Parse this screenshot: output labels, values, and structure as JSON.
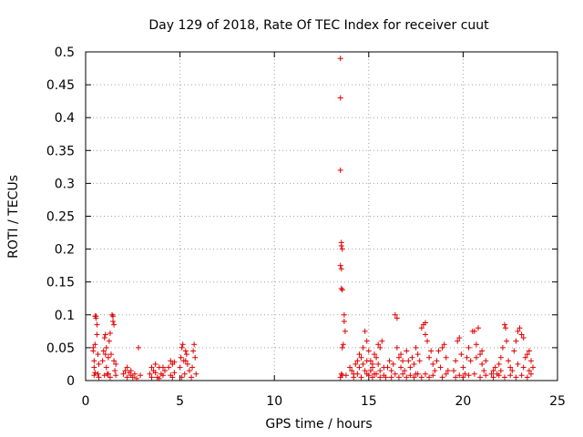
{
  "chart_data": {
    "type": "scatter",
    "title": "Day 129 of 2018, Rate Of TEC Index for receiver cuut",
    "xlabel": "GPS time / hours",
    "ylabel": "ROTI / TECUs",
    "xlim": [
      0,
      25
    ],
    "ylim": [
      0,
      0.5
    ],
    "xticks": [
      "0",
      "5",
      "10",
      "15",
      "20",
      "25"
    ],
    "yticks": [
      "0",
      "0.05",
      "0.1",
      "0.15",
      "0.2",
      "0.25",
      "0.3",
      "0.35",
      "0.4",
      "0.45",
      "0.5"
    ],
    "grid": true,
    "marker": "plus",
    "marker_color": "#e00000",
    "series": [
      {
        "points": [
          [
            0.4,
            0.05
          ],
          [
            0.4,
            0.045
          ],
          [
            0.45,
            0.03
          ],
          [
            0.45,
            0.02
          ],
          [
            0.5,
            0.012
          ],
          [
            0.5,
            0.055
          ],
          [
            0.55,
            0.098
          ],
          [
            0.55,
            0.095
          ],
          [
            0.6,
            0.085
          ],
          [
            0.6,
            0.07
          ],
          [
            0.65,
            0.04
          ],
          [
            0.65,
            0.01
          ],
          [
            0.7,
            0.005
          ],
          [
            0.7,
            0.025
          ],
          [
            0.5,
            0.098
          ],
          [
            0.45,
            0.008
          ],
          [
            0.9,
            0.03
          ],
          [
            0.95,
            0.045
          ],
          [
            1.0,
            0.065
          ],
          [
            1.05,
            0.07
          ],
          [
            1.1,
            0.05
          ],
          [
            1.1,
            0.02
          ],
          [
            1.15,
            0.01
          ],
          [
            1.2,
            0.035
          ],
          [
            1.25,
            0.06
          ],
          [
            1.3,
            0.072
          ],
          [
            1.35,
            0.04
          ],
          [
            1.4,
            0.1
          ],
          [
            1.45,
            0.098
          ],
          [
            1.45,
            0.09
          ],
          [
            1.5,
            0.085
          ],
          [
            1.5,
            0.03
          ],
          [
            1.55,
            0.015
          ],
          [
            1.6,
            0.008
          ],
          [
            1.0,
            0.008
          ],
          [
            1.2,
            0.01
          ],
          [
            1.3,
            0.005
          ],
          [
            1.6,
            0.025
          ],
          [
            1.05,
            0.04
          ],
          [
            2.0,
            0.01
          ],
          [
            2.1,
            0.015
          ],
          [
            2.2,
            0.02
          ],
          [
            2.3,
            0.012
          ],
          [
            2.4,
            0.008
          ],
          [
            2.5,
            0.005
          ],
          [
            2.6,
            0.01
          ],
          [
            2.7,
            0.003
          ],
          [
            2.8,
            0.05
          ],
          [
            2.9,
            0.008
          ],
          [
            2.2,
            0.005
          ],
          [
            2.4,
            0.015
          ],
          [
            3.4,
            0.01
          ],
          [
            3.5,
            0.02
          ],
          [
            3.6,
            0.015
          ],
          [
            3.7,
            0.025
          ],
          [
            3.8,
            0.005
          ],
          [
            3.9,
            0.02
          ],
          [
            4.0,
            0.01
          ],
          [
            4.1,
            0.008
          ],
          [
            4.2,
            0.015
          ],
          [
            3.5,
            0.005
          ],
          [
            3.7,
            0.012
          ],
          [
            3.9,
            0.003
          ],
          [
            4.1,
            0.02
          ],
          [
            4.4,
            0.02
          ],
          [
            4.5,
            0.03
          ],
          [
            4.6,
            0.025
          ],
          [
            4.7,
            0.012
          ],
          [
            4.5,
            0.008
          ],
          [
            4.6,
            0.005
          ],
          [
            4.7,
            0.028
          ],
          [
            5.0,
            0.02
          ],
          [
            5.05,
            0.035
          ],
          [
            5.1,
            0.05
          ],
          [
            5.15,
            0.055
          ],
          [
            5.2,
            0.03
          ],
          [
            5.25,
            0.01
          ],
          [
            5.3,
            0.045
          ],
          [
            5.35,
            0.04
          ],
          [
            5.4,
            0.025
          ],
          [
            5.5,
            0.015
          ],
          [
            5.6,
            0.005
          ],
          [
            5.65,
            0.02
          ],
          [
            5.7,
            0.045
          ],
          [
            5.75,
            0.055
          ],
          [
            5.8,
            0.035
          ],
          [
            5.85,
            0.01
          ],
          [
            5.1,
            0.005
          ],
          [
            5.3,
            0.03
          ],
          [
            13.5,
            0.49
          ],
          [
            13.5,
            0.43
          ],
          [
            13.5,
            0.32
          ],
          [
            13.55,
            0.21
          ],
          [
            13.55,
            0.205
          ],
          [
            13.6,
            0.2
          ],
          [
            13.5,
            0.175
          ],
          [
            13.55,
            0.17
          ],
          [
            13.55,
            0.14
          ],
          [
            13.6,
            0.138
          ],
          [
            13.7,
            0.1
          ],
          [
            13.7,
            0.09
          ],
          [
            13.75,
            0.075
          ],
          [
            13.65,
            0.055
          ],
          [
            13.6,
            0.05
          ],
          [
            13.55,
            0.01
          ],
          [
            13.6,
            0.008
          ],
          [
            13.5,
            0.005
          ],
          [
            13.8,
            0.008
          ],
          [
            14.0,
            0.02
          ],
          [
            14.1,
            0.015
          ],
          [
            14.2,
            0.01
          ],
          [
            14.3,
            0.025
          ],
          [
            14.4,
            0.03
          ],
          [
            14.5,
            0.04
          ],
          [
            14.6,
            0.035
          ],
          [
            14.7,
            0.05
          ],
          [
            14.8,
            0.075
          ],
          [
            14.9,
            0.06
          ],
          [
            15.0,
            0.045
          ],
          [
            15.1,
            0.03
          ],
          [
            15.2,
            0.02
          ],
          [
            15.3,
            0.01
          ],
          [
            15.4,
            0.035
          ],
          [
            15.5,
            0.025
          ],
          [
            15.6,
            0.015
          ],
          [
            15.7,
            0.06
          ],
          [
            15.8,
            0.02
          ],
          [
            15.9,
            0.005
          ],
          [
            14.2,
            0.005
          ],
          [
            14.4,
            0.01
          ],
          [
            14.6,
            0.005
          ],
          [
            14.8,
            0.015
          ],
          [
            15.0,
            0.008
          ],
          [
            15.2,
            0.005
          ],
          [
            15.4,
            0.01
          ],
          [
            15.6,
            0.005
          ],
          [
            15.8,
            0.008
          ],
          [
            14.5,
            0.02
          ],
          [
            14.7,
            0.025
          ],
          [
            14.9,
            0.01
          ],
          [
            15.1,
            0.015
          ],
          [
            15.3,
            0.04
          ],
          [
            15.5,
            0.055
          ],
          [
            14.9,
            0.03
          ],
          [
            15.2,
            0.025
          ],
          [
            15.6,
            0.05
          ],
          [
            16.0,
            0.02
          ],
          [
            16.1,
            0.03
          ],
          [
            16.2,
            0.015
          ],
          [
            16.3,
            0.025
          ],
          [
            16.4,
            0.1
          ],
          [
            16.5,
            0.095
          ],
          [
            16.6,
            0.035
          ],
          [
            16.7,
            0.02
          ],
          [
            16.8,
            0.03
          ],
          [
            16.9,
            0.015
          ],
          [
            17.0,
            0.045
          ],
          [
            17.1,
            0.03
          ],
          [
            17.2,
            0.02
          ],
          [
            17.3,
            0.035
          ],
          [
            17.4,
            0.025
          ],
          [
            17.5,
            0.01
          ],
          [
            17.6,
            0.04
          ],
          [
            17.7,
            0.03
          ],
          [
            17.8,
            0.08
          ],
          [
            17.9,
            0.085
          ],
          [
            18.0,
            0.07
          ],
          [
            18.1,
            0.06
          ],
          [
            18.2,
            0.035
          ],
          [
            18.3,
            0.045
          ],
          [
            18.4,
            0.025
          ],
          [
            18.5,
            0.015
          ],
          [
            16.2,
            0.005
          ],
          [
            16.4,
            0.01
          ],
          [
            16.6,
            0.005
          ],
          [
            16.8,
            0.01
          ],
          [
            17.0,
            0.005
          ],
          [
            17.2,
            0.008
          ],
          [
            17.4,
            0.005
          ],
          [
            17.6,
            0.01
          ],
          [
            17.8,
            0.005
          ],
          [
            18.0,
            0.01
          ],
          [
            18.2,
            0.005
          ],
          [
            18.4,
            0.008
          ],
          [
            16.5,
            0.05
          ],
          [
            16.7,
            0.04
          ],
          [
            17.5,
            0.05
          ],
          [
            18.0,
            0.088
          ],
          [
            18.6,
            0.03
          ],
          [
            18.7,
            0.045
          ],
          [
            18.8,
            0.02
          ],
          [
            18.9,
            0.05
          ],
          [
            19.0,
            0.055
          ],
          [
            19.1,
            0.035
          ],
          [
            19.2,
            0.015
          ],
          [
            18.9,
            0.005
          ],
          [
            19.1,
            0.01
          ],
          [
            19.5,
            0.015
          ],
          [
            19.6,
            0.03
          ],
          [
            19.7,
            0.06
          ],
          [
            19.8,
            0.065
          ],
          [
            19.9,
            0.04
          ],
          [
            20.0,
            0.02
          ],
          [
            20.1,
            0.01
          ],
          [
            20.2,
            0.035
          ],
          [
            20.3,
            0.05
          ],
          [
            20.4,
            0.03
          ],
          [
            20.5,
            0.075
          ],
          [
            20.6,
            0.075
          ],
          [
            20.7,
            0.055
          ],
          [
            20.8,
            0.08
          ],
          [
            20.9,
            0.04
          ],
          [
            21.0,
            0.025
          ],
          [
            21.1,
            0.015
          ],
          [
            21.2,
            0.03
          ],
          [
            19.6,
            0.005
          ],
          [
            19.8,
            0.008
          ],
          [
            20.0,
            0.005
          ],
          [
            20.3,
            0.008
          ],
          [
            20.6,
            0.01
          ],
          [
            20.9,
            0.005
          ],
          [
            21.2,
            0.008
          ],
          [
            20.7,
            0.035
          ],
          [
            21.0,
            0.045
          ],
          [
            21.5,
            0.01
          ],
          [
            21.6,
            0.015
          ],
          [
            21.7,
            0.02
          ],
          [
            21.8,
            0.01
          ],
          [
            21.9,
            0.025
          ],
          [
            22.0,
            0.015
          ],
          [
            22.1,
            0.05
          ],
          [
            22.2,
            0.085
          ],
          [
            22.25,
            0.08
          ],
          [
            22.3,
            0.06
          ],
          [
            22.4,
            0.03
          ],
          [
            22.5,
            0.02
          ],
          [
            22.6,
            0.015
          ],
          [
            22.7,
            0.045
          ],
          [
            22.8,
            0.06
          ],
          [
            22.9,
            0.075
          ],
          [
            23.0,
            0.08
          ],
          [
            23.1,
            0.07
          ],
          [
            23.2,
            0.065
          ],
          [
            23.3,
            0.035
          ],
          [
            23.4,
            0.04
          ],
          [
            23.5,
            0.045
          ],
          [
            23.6,
            0.03
          ],
          [
            23.7,
            0.02
          ],
          [
            21.6,
            0.005
          ],
          [
            21.9,
            0.008
          ],
          [
            22.2,
            0.005
          ],
          [
            22.5,
            0.008
          ],
          [
            22.8,
            0.005
          ],
          [
            23.1,
            0.008
          ],
          [
            23.4,
            0.005
          ],
          [
            23.6,
            0.01
          ],
          [
            22.0,
            0.035
          ],
          [
            22.9,
            0.025
          ],
          [
            23.2,
            0.02
          ],
          [
            23.5,
            0.015
          ]
        ]
      }
    ]
  }
}
